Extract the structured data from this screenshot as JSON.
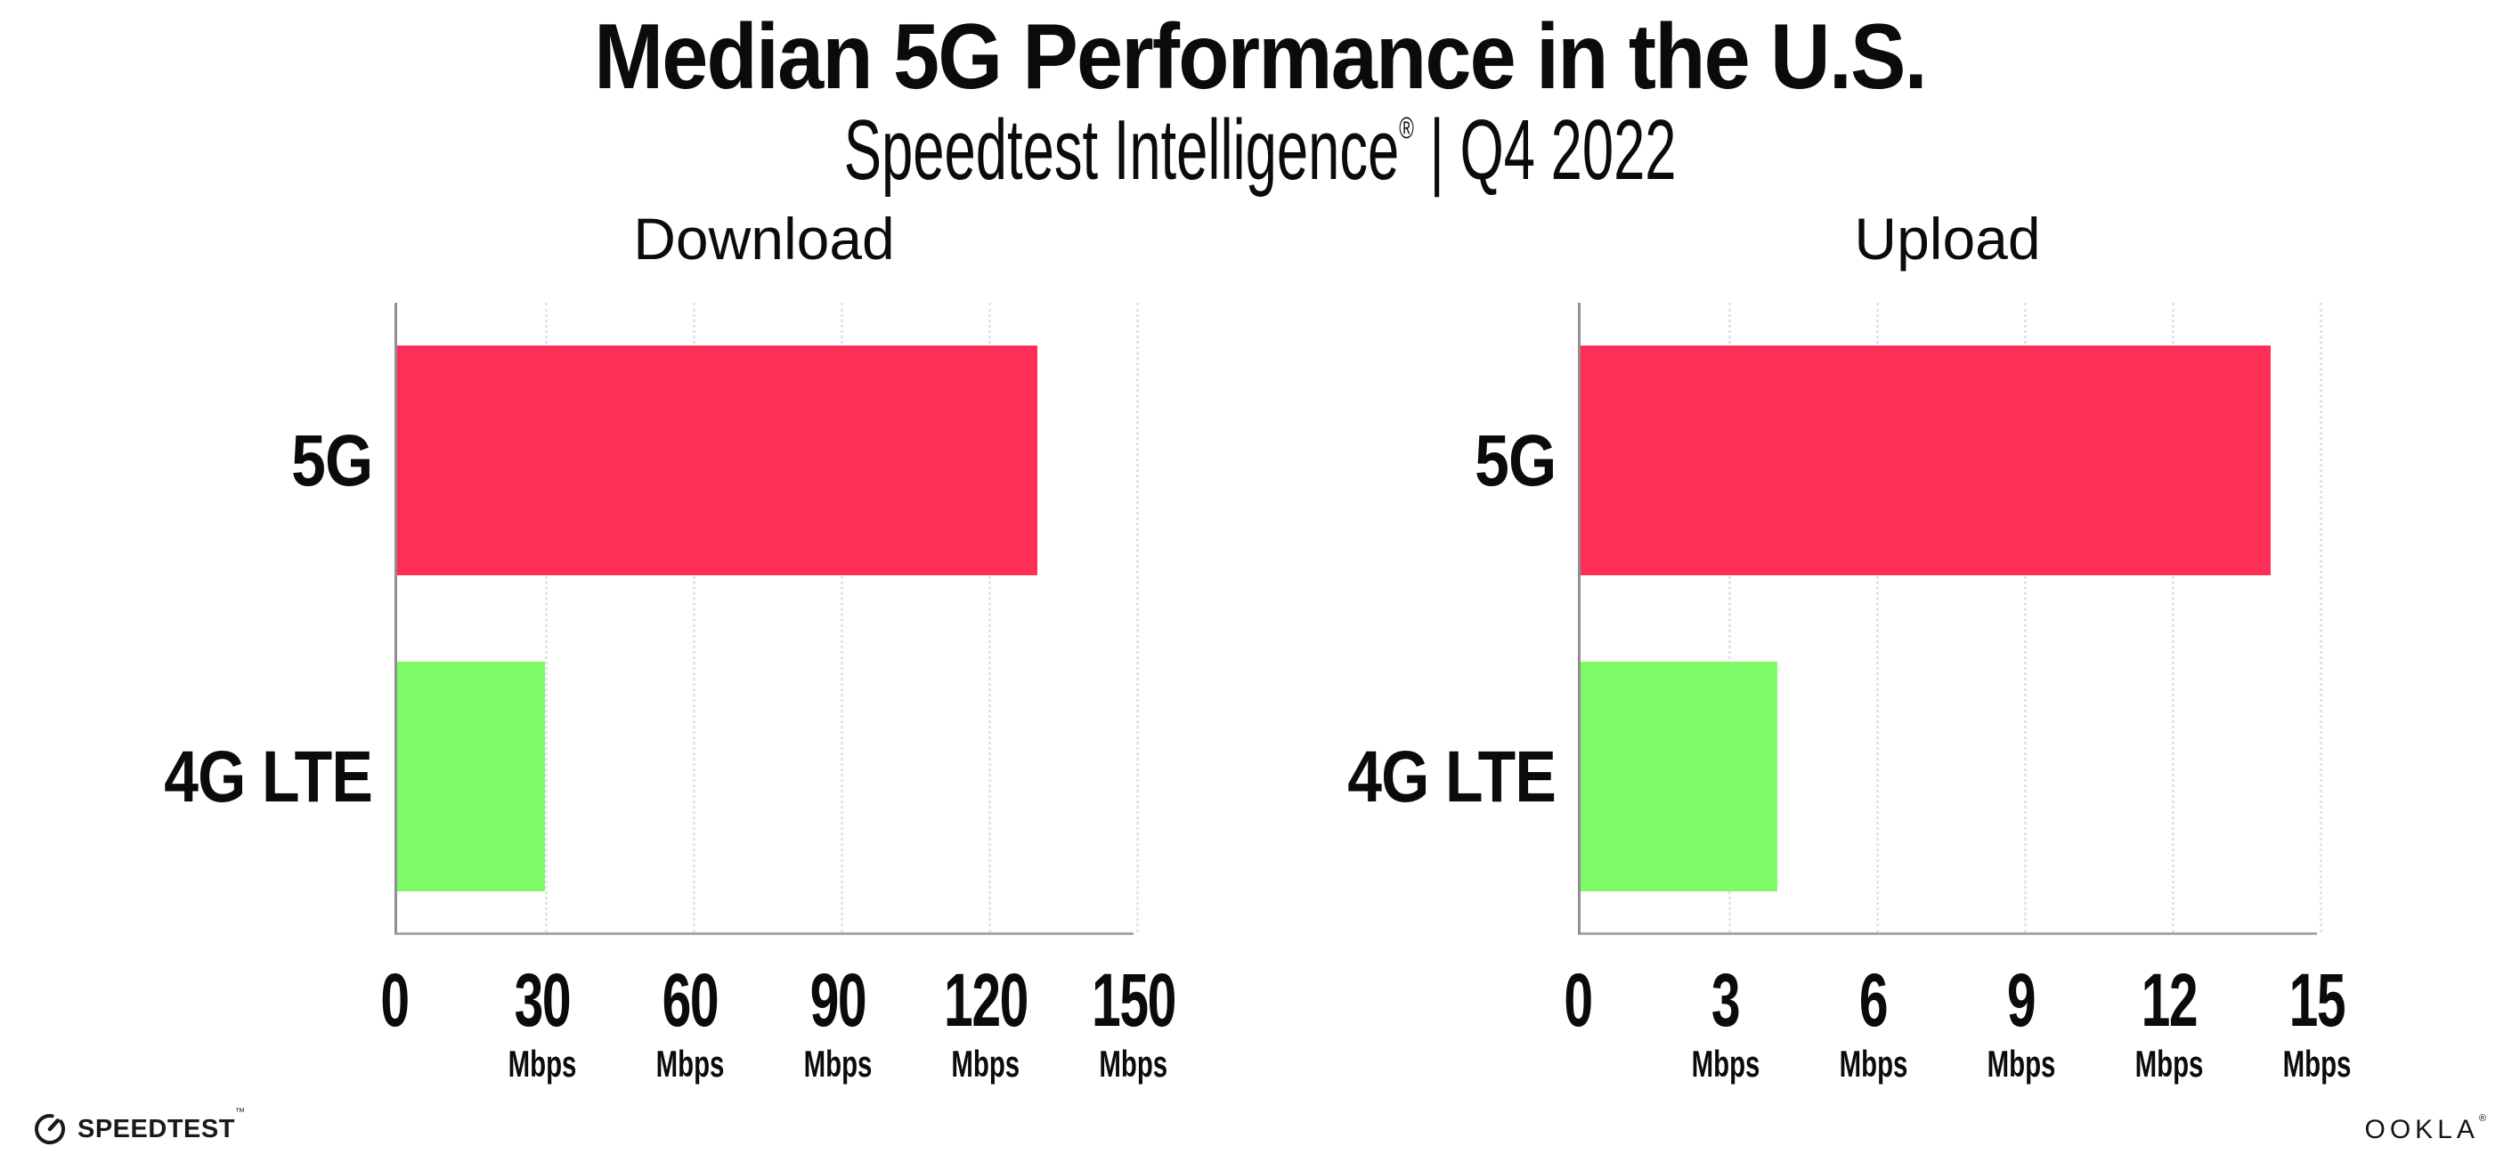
{
  "page": {
    "background": "#ffffff"
  },
  "header": {
    "title": "Median 5G Performance in the U.S.",
    "subtitle_main": "Speedtest Intelligence",
    "subtitle_reg": "®",
    "subtitle_rest": " | Q4 2022"
  },
  "colors": {
    "bar_5g": "#ff2e56",
    "bar_4g_lte": "#7efa68",
    "y_axis": "#8e8e93",
    "x_axis": "#a6a6ac",
    "gridline": "#e3e3ee",
    "text": "#0b0b0c"
  },
  "chart_data": [
    {
      "type": "bar",
      "orientation": "horizontal",
      "title": "Download",
      "categories": [
        "5G",
        "4G LTE"
      ],
      "values": [
        130,
        30
      ],
      "unit": "Mbps",
      "xlim": [
        0,
        150
      ],
      "xticks": [
        0,
        30,
        60,
        90,
        120,
        150
      ],
      "tick_unit_label": "Mbps",
      "unit_on_zero_tick": false,
      "bar_colors": [
        "#ff2e56",
        "#7efa68"
      ],
      "grid": "vertical-dotted",
      "legend": "none"
    },
    {
      "type": "bar",
      "orientation": "horizontal",
      "title": "Upload",
      "categories": [
        "5G",
        "4G LTE"
      ],
      "values": [
        14,
        4
      ],
      "unit": "Mbps",
      "xlim": [
        0,
        15
      ],
      "xticks": [
        0,
        3,
        6,
        9,
        12,
        15
      ],
      "tick_unit_label": "Mbps",
      "unit_on_zero_tick": false,
      "bar_colors": [
        "#ff2e56",
        "#7efa68"
      ],
      "grid": "vertical-dotted",
      "legend": "none"
    }
  ],
  "footer": {
    "speedtest_label": "SPEEDTEST",
    "speedtest_tm": "™",
    "ookla_label": "OOKLA",
    "ookla_reg": "®"
  }
}
